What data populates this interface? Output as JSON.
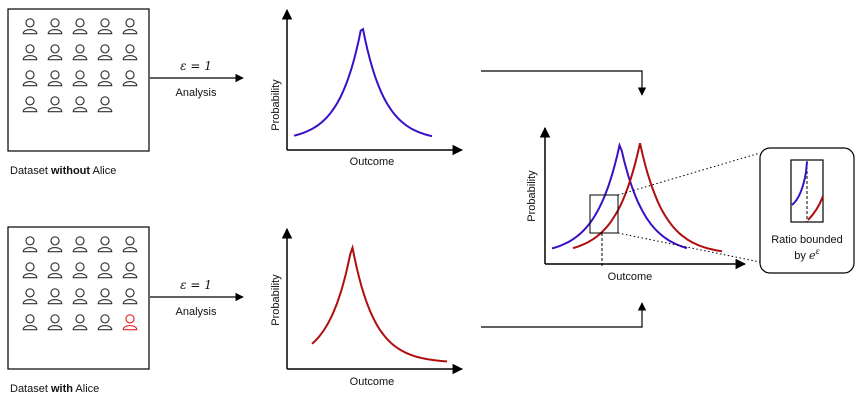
{
  "datasets": {
    "without": {
      "caption_prefix": "Dataset ",
      "caption_bold": "without",
      "caption_suffix": " Alice"
    },
    "with": {
      "caption_prefix": "Dataset ",
      "caption_bold": "with",
      "caption_suffix": " Alice"
    }
  },
  "mechanism": {
    "epsilon_label": "ε = 1",
    "analysis_label": "Analysis"
  },
  "plots": {
    "ylabel": "Probability",
    "xlabel": "Outcome"
  },
  "zoom": {
    "line1": "Ratio bounded",
    "line2_prefix": "by ",
    "line2_math": "e",
    "line2_sup": "ε"
  },
  "colors": {
    "without": "#3a0fc9",
    "with": "#b00e0e",
    "alice": "#e02a2a",
    "person": "#333333"
  },
  "icons": {
    "person": "person-icon"
  }
}
